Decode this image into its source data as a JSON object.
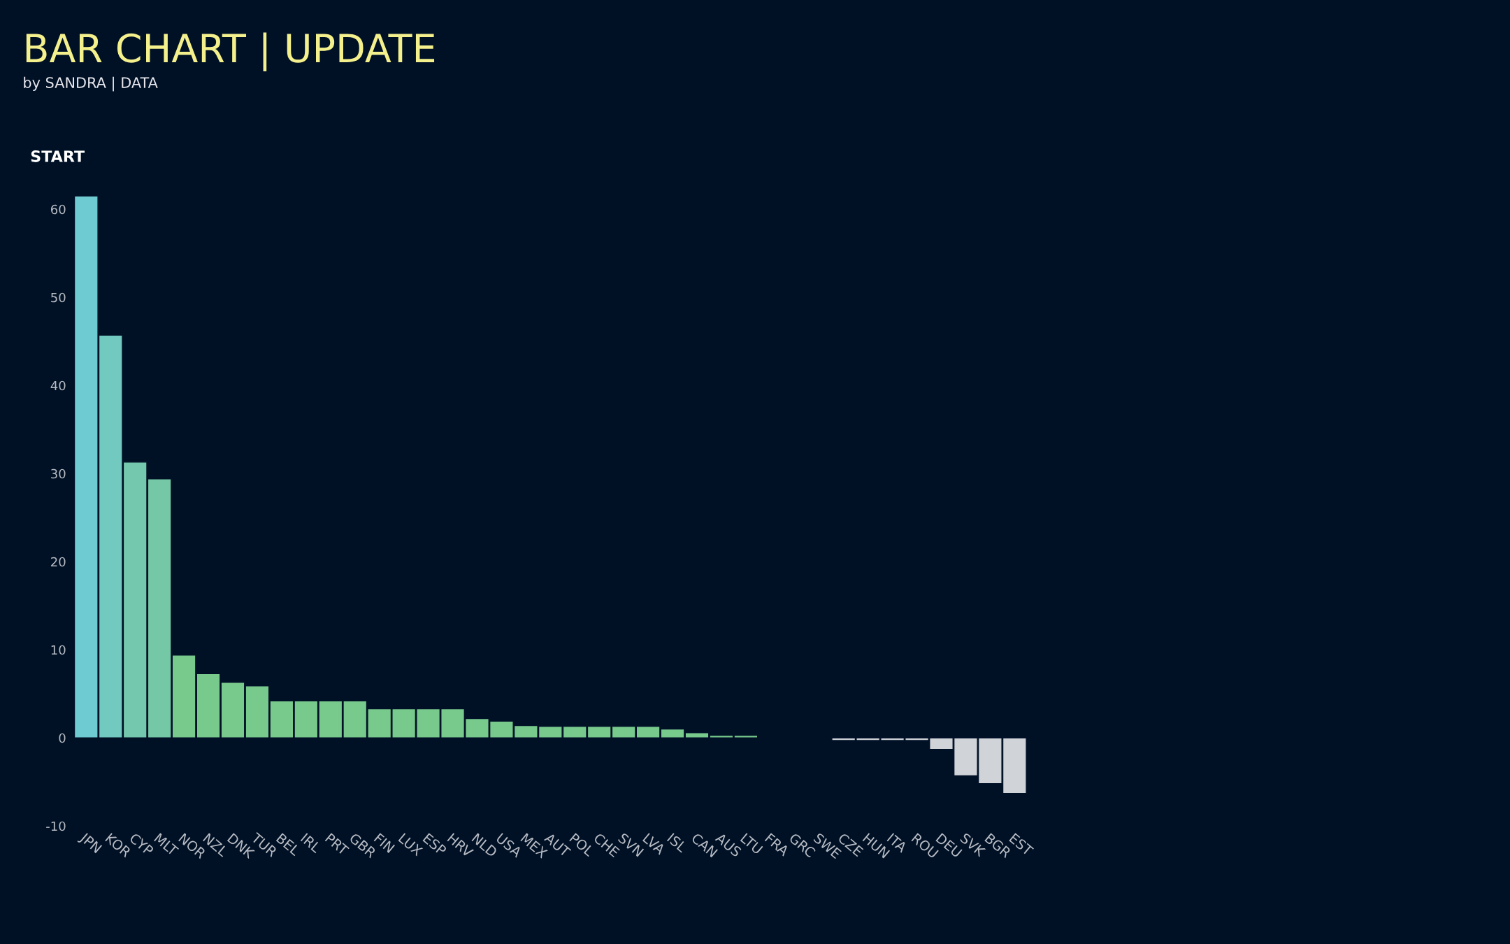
{
  "chart_data": {
    "type": "bar",
    "title": "BAR CHART | UPDATE",
    "subtitle": "by SANDRA | DATA",
    "annotations": [
      "START"
    ],
    "categories": [
      "JPN",
      "KOR",
      "CYP",
      "MLT",
      "NOR",
      "NZL",
      "DNK",
      "TUR",
      "BEL",
      "IRL",
      "PRT",
      "GBR",
      "FIN",
      "LUX",
      "ESP",
      "HRV",
      "NLD",
      "USA",
      "MEX",
      "AUT",
      "POL",
      "CHE",
      "SVN",
      "LVA",
      "ISL",
      "CAN",
      "AUS",
      "LTU",
      "FRA",
      "GRC",
      "SWE",
      "CZE",
      "HUN",
      "ITA",
      "ROU",
      "DEU",
      "SVK",
      "BGR",
      "EST"
    ],
    "values": [
      61.5,
      45.7,
      31.3,
      29.4,
      9.4,
      7.3,
      6.3,
      5.9,
      4.2,
      4.2,
      4.2,
      4.2,
      3.3,
      3.3,
      3.3,
      3.3,
      2.2,
      1.9,
      1.4,
      1.3,
      1.3,
      1.3,
      1.3,
      1.3,
      1.0,
      0.6,
      0.3,
      0.3,
      null,
      null,
      null,
      -0.3,
      -0.3,
      -0.3,
      -0.3,
      -1.3,
      -4.3,
      -5.2,
      -6.3
    ],
    "colors": [
      "#6ecbd2",
      "#71c9bf",
      "#74c8ad",
      "#75c8a6",
      "#78c98c",
      "#78c98c",
      "#78c98c",
      "#78c98c",
      "#78c98c",
      "#78c98c",
      "#78c98c",
      "#78c98c",
      "#78c98c",
      "#78c98c",
      "#78c98c",
      "#78c98c",
      "#78c98c",
      "#78c98c",
      "#78c98c",
      "#78c98c",
      "#78c98c",
      "#78c98c",
      "#78c98c",
      "#78c98c",
      "#78c98c",
      "#78c98c",
      "#78c98c",
      "#78c98c",
      null,
      null,
      null,
      "#d0d3d8",
      "#d0d3d8",
      "#d0d3d8",
      "#d0d3d8",
      "#d0d3d8",
      "#d0d3d8",
      "#d0d3d8",
      "#d0d3d8"
    ],
    "ylim": [
      -10,
      62
    ],
    "yticks": [
      -10,
      0,
      10,
      20,
      30,
      40,
      50,
      60
    ],
    "grid": false,
    "legend": false
  }
}
